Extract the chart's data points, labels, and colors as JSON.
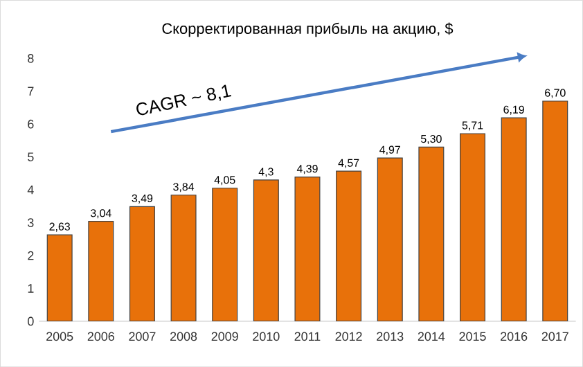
{
  "chart_data": {
    "type": "bar",
    "title": "Скорректированная прибыль на акцию, $",
    "categories": [
      "2005",
      "2006",
      "2007",
      "2008",
      "2009",
      "2010",
      "2011",
      "2012",
      "2013",
      "2014",
      "2015",
      "2016",
      "2017"
    ],
    "values": [
      2.63,
      3.04,
      3.49,
      3.84,
      4.05,
      4.3,
      4.39,
      4.57,
      4.97,
      5.3,
      5.71,
      6.19,
      6.7
    ],
    "value_labels": [
      "2,63",
      "3,04",
      "3,49",
      "3,84",
      "4,05",
      "4,3",
      "4,39",
      "4,57",
      "4,97",
      "5,30",
      "5,71",
      "6,19",
      "6,70"
    ],
    "color": "#e8710a",
    "ylim": [
      0,
      8
    ],
    "yticks": [
      0,
      1,
      2,
      3,
      4,
      5,
      6,
      7,
      8
    ],
    "annotations": [
      "CAGR ~ 8,1"
    ]
  }
}
